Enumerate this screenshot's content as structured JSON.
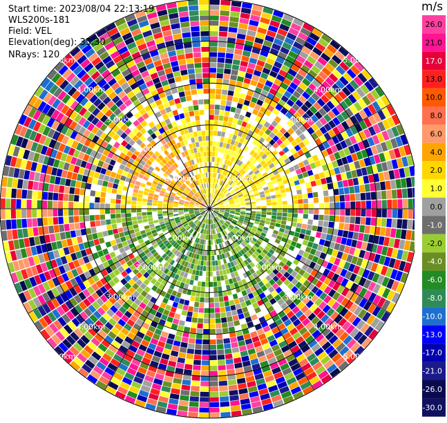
{
  "info": {
    "start_time": "Start time: 2023/08/04 22:13:19",
    "instrument": "WLS200s-181",
    "field": "Field: VEL",
    "elevation": "Elevation(deg): 35.30",
    "nrays": "NRays: 120"
  },
  "ppi": {
    "nrays": 120,
    "ring_labels": [
      "1.00km",
      "2.00km",
      "3.00km",
      "4.00km",
      "5.00km"
    ]
  },
  "colorbar": {
    "unit": "m/s",
    "ticks": [
      "26.0",
      "21.0",
      "17.0",
      "13.0",
      "10.0",
      "8.0",
      "6.0",
      "4.0",
      "2.0",
      "1.0",
      "0.0",
      "-1.0",
      "-2.0",
      "-4.0",
      "-6.0",
      "-8.0",
      "-10.0",
      "-13.0",
      "-17.0",
      "-21.0",
      "-26.0",
      "-30.0"
    ],
    "colors": [
      "#ff40a0",
      "#ff1493",
      "#e8003a",
      "#ff2020",
      "#ff5a00",
      "#ff7050",
      "#ff9a6a",
      "#ffa500",
      "#ffd700",
      "#ffff33",
      "#a0a0a0",
      "#6e6e6e",
      "#9acd32",
      "#6b8e23",
      "#228b22",
      "#2e8b57",
      "#1e6fd0",
      "#0000ff",
      "#0000b0",
      "#1a1a8a",
      "#0a0a50",
      "#101060"
    ],
    "text_colors": [
      "#000",
      "#000",
      "#fff",
      "#000",
      "#000",
      "#000",
      "#000",
      "#000",
      "#000",
      "#000",
      "#000",
      "#fff",
      "#000",
      "#fff",
      "#fff",
      "#fff",
      "#fff",
      "#fff",
      "#fff",
      "#fff",
      "#fff",
      "#fff"
    ]
  }
}
